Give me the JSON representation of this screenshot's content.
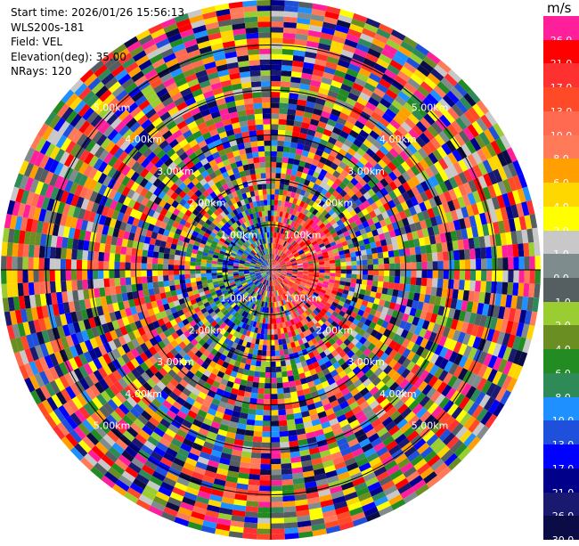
{
  "meta": {
    "start_time": "Start time: 2026/01/26 15:56:13",
    "station": "WLS200s-181",
    "field": "Field: VEL",
    "elevation": "Elevation(deg): 35.00",
    "nrays": "NRays: 120"
  },
  "range_rings": {
    "labels": [
      "1.00km",
      "2.00km",
      "3.00km",
      "4.00km",
      "5.00km"
    ],
    "label_color": "#ffffff"
  },
  "colorbar": {
    "unit": "m/s",
    "levels": [
      {
        "label": "26.0",
        "color": "#ff1f9a"
      },
      {
        "label": "21.0",
        "color": "#ff0000"
      },
      {
        "label": "17.0",
        "color": "#ff3030"
      },
      {
        "label": "13.0",
        "color": "#ff4a28"
      },
      {
        "label": "10.0",
        "color": "#ff6a50"
      },
      {
        "label": "8.0",
        "color": "#ff7a58"
      },
      {
        "label": "6.0",
        "color": "#ffa000"
      },
      {
        "label": "4.0",
        "color": "#ffd700"
      },
      {
        "label": "2.0",
        "color": "#ffff00"
      },
      {
        "label": "1.0",
        "color": "#c8c8c8"
      },
      {
        "label": "0.0",
        "color": "#7f8c8d"
      },
      {
        "label": "-1.0",
        "color": "#555e60"
      },
      {
        "label": "-2.0",
        "color": "#9acd32"
      },
      {
        "label": "-4.0",
        "color": "#6b8e23"
      },
      {
        "label": "-6.0",
        "color": "#228b22"
      },
      {
        "label": "-8.0",
        "color": "#2e8b57"
      },
      {
        "label": "-10.0",
        "color": "#1e90ff"
      },
      {
        "label": "-13.0",
        "color": "#1e50dc"
      },
      {
        "label": "-17.0",
        "color": "#0000ff"
      },
      {
        "label": "-21.0",
        "color": "#00008b"
      },
      {
        "label": "-26.0",
        "color": "#191970"
      },
      {
        "label": "-30.0",
        "color": "#0b0b45"
      }
    ]
  }
}
